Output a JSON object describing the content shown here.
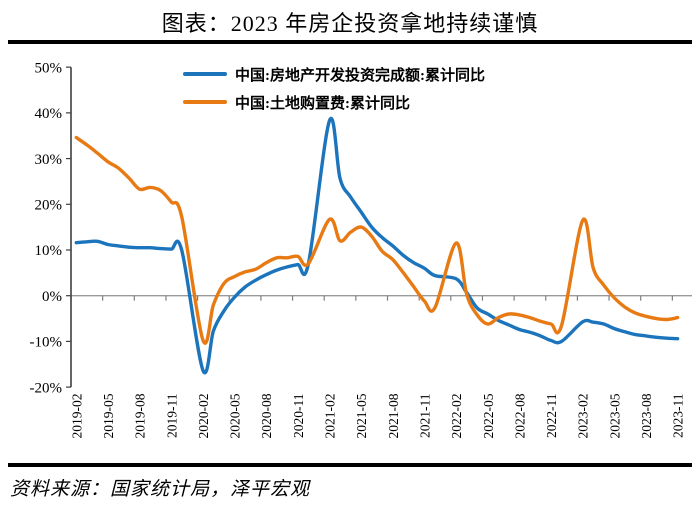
{
  "header": {
    "title": "图表：2023 年房企投资拿地持续谨慎"
  },
  "source": {
    "text": "资料来源：国家统计局，泽平宏观"
  },
  "chart_data": {
    "type": "line",
    "title": "图表：2023 年房企投资拿地持续谨慎",
    "legend_position": "top",
    "grid": "zero-line-only",
    "y_axis": {
      "min": -20,
      "max": 50,
      "step": 10,
      "tick_labels": [
        "50%",
        "40%",
        "30%",
        "20%",
        "10%",
        "0%",
        "-10%",
        "-20%"
      ]
    },
    "x_axis": {
      "tick_labels": [
        "2019-02",
        "2019-05",
        "2019-08",
        "2019-11",
        "2020-02",
        "2020-05",
        "2020-08",
        "2020-11",
        "2021-02",
        "2021-05",
        "2021-08",
        "2021-11",
        "2022-02",
        "2022-05",
        "2022-08",
        "2022-11",
        "2023-02",
        "2023-05",
        "2023-08",
        "2023-11"
      ]
    },
    "months": [
      "2019-02",
      "2019-03",
      "2019-04",
      "2019-05",
      "2019-06",
      "2019-07",
      "2019-08",
      "2019-09",
      "2019-10",
      "2019-11",
      "2019-12",
      "2020-02",
      "2020-03",
      "2020-04",
      "2020-05",
      "2020-06",
      "2020-07",
      "2020-08",
      "2020-09",
      "2020-10",
      "2020-11",
      "2020-12",
      "2021-02",
      "2021-03",
      "2021-04",
      "2021-05",
      "2021-06",
      "2021-07",
      "2021-08",
      "2021-09",
      "2021-10",
      "2021-11",
      "2021-12",
      "2022-02",
      "2022-03",
      "2022-04",
      "2022-05",
      "2022-06",
      "2022-07",
      "2022-08",
      "2022-09",
      "2022-10",
      "2022-11",
      "2022-12",
      "2023-02",
      "2023-03",
      "2023-04",
      "2023-05",
      "2023-06",
      "2023-07",
      "2023-08",
      "2023-09",
      "2023-10",
      "2023-11"
    ],
    "series": [
      {
        "name": "中国:房地产开发投资完成额:累计同比",
        "color": "#1C75BC",
        "values": [
          11.6,
          11.8,
          11.9,
          11.2,
          10.9,
          10.6,
          10.5,
          10.5,
          10.3,
          10.2,
          9.9,
          -16.3,
          -7.7,
          -3.3,
          -0.3,
          1.9,
          3.4,
          4.6,
          5.6,
          6.3,
          6.8,
          7.0,
          38.3,
          25.6,
          21.6,
          18.3,
          15.0,
          12.7,
          10.9,
          8.8,
          7.2,
          6.0,
          4.4,
          3.7,
          0.7,
          -2.7,
          -4.0,
          -5.4,
          -6.4,
          -7.4,
          -8.0,
          -8.8,
          -9.8,
          -10.0,
          -5.7,
          -5.8,
          -6.2,
          -7.2,
          -7.9,
          -8.5,
          -8.8,
          -9.1,
          -9.3,
          -9.4
        ]
      },
      {
        "name": "中国:土地购置费:累计同比",
        "color": "#E87A14",
        "values": [
          34.6,
          33.0,
          31.2,
          29.3,
          27.9,
          25.7,
          23.3,
          23.7,
          23.0,
          20.5,
          17.2,
          -9.7,
          -2.0,
          2.7,
          4.2,
          5.2,
          5.8,
          7.2,
          8.3,
          8.3,
          8.6,
          7.0,
          16.7,
          12.0,
          13.9,
          15.0,
          13.0,
          9.7,
          7.9,
          5.0,
          1.9,
          -1.2,
          -2.6,
          11.5,
          0.3,
          -4.2,
          -6.2,
          -4.8,
          -4.0,
          -4.2,
          -4.8,
          -5.6,
          -6.2,
          -6.5,
          16.5,
          6.0,
          2.3,
          -0.5,
          -2.5,
          -3.8,
          -4.5,
          -5.0,
          -5.2,
          -4.8
        ]
      }
    ]
  }
}
